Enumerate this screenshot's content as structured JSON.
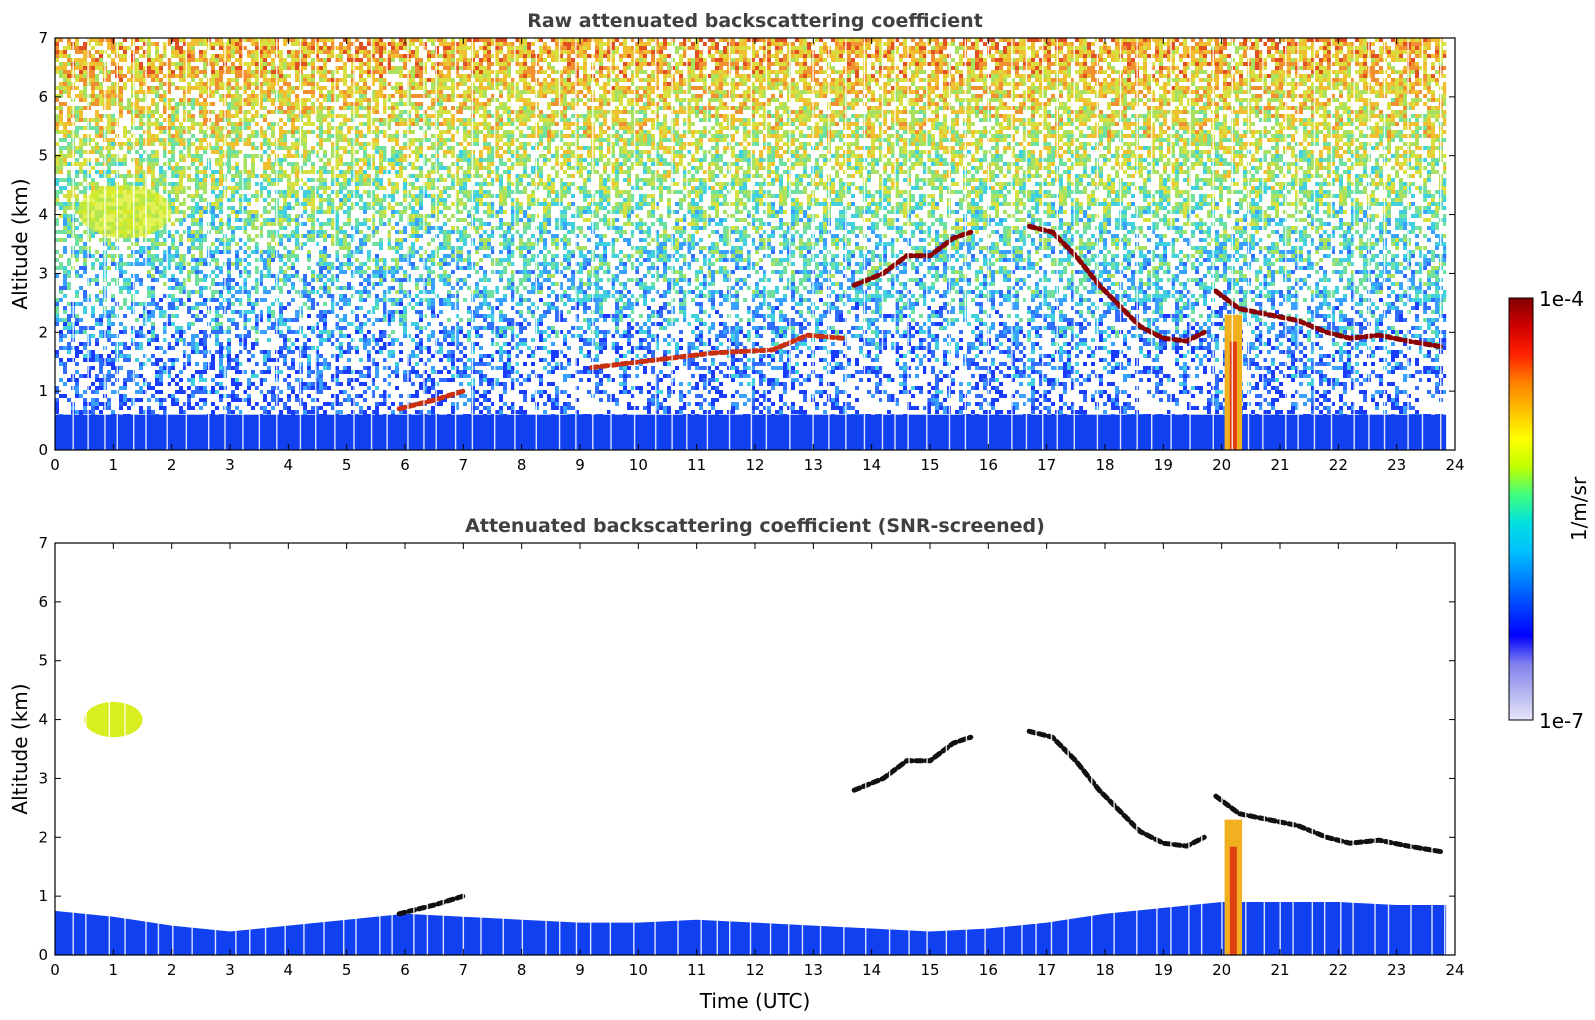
{
  "chart_data": [
    {
      "type": "heatmap",
      "title": "Raw attenuated backscattering coefficient",
      "xlabel": "",
      "ylabel": "Altitude (km)",
      "xlim": [
        0,
        24
      ],
      "ylim": [
        0,
        7
      ],
      "x_ticks": [
        0,
        1,
        2,
        3,
        4,
        5,
        6,
        7,
        8,
        9,
        10,
        11,
        12,
        13,
        14,
        15,
        16,
        17,
        18,
        19,
        20,
        21,
        22,
        23,
        24
      ],
      "y_ticks": [
        0,
        1,
        2,
        3,
        4,
        5,
        6,
        7
      ],
      "data_end_time": 23.85,
      "features": [
        {
          "kind": "boundary_layer",
          "time": [
            0,
            23.85
          ],
          "altitude": [
            0,
            0.6
          ],
          "level": "blue"
        },
        {
          "kind": "aerosol_patch",
          "time": [
            0.4,
            2.0
          ],
          "altitude": [
            3.6,
            4.5
          ],
          "level": "yellow-green"
        },
        {
          "kind": "cloud_layer",
          "points": [
            [
              5.9,
              0.7
            ],
            [
              6.5,
              0.85
            ],
            [
              7.0,
              1.0
            ]
          ],
          "level": "red"
        },
        {
          "kind": "cloud_layer",
          "points": [
            [
              9.2,
              1.4
            ],
            [
              11.3,
              1.65
            ],
            [
              12.3,
              1.7
            ],
            [
              12.9,
              1.95
            ],
            [
              13.5,
              1.9
            ]
          ],
          "level": "red"
        },
        {
          "kind": "cloud_layer",
          "points": [
            [
              13.7,
              2.8
            ],
            [
              14.2,
              3.0
            ],
            [
              14.6,
              3.3
            ],
            [
              15.0,
              3.3
            ],
            [
              15.4,
              3.6
            ],
            [
              15.7,
              3.7
            ]
          ],
          "level": "dark-red"
        },
        {
          "kind": "cloud_layer",
          "points": [
            [
              16.7,
              3.8
            ],
            [
              17.1,
              3.7
            ],
            [
              17.5,
              3.3
            ],
            [
              17.9,
              2.8
            ],
            [
              18.3,
              2.4
            ],
            [
              18.6,
              2.1
            ],
            [
              19.0,
              1.9
            ],
            [
              19.4,
              1.85
            ],
            [
              19.7,
              2.0
            ]
          ],
          "level": "dark-red"
        },
        {
          "kind": "cloud_layer",
          "points": [
            [
              19.9,
              2.7
            ],
            [
              20.3,
              2.4
            ],
            [
              20.8,
              2.3
            ],
            [
              21.3,
              2.2
            ],
            [
              21.8,
              2.0
            ],
            [
              22.2,
              1.9
            ],
            [
              22.7,
              1.95
            ],
            [
              23.2,
              1.85
            ],
            [
              23.8,
              1.75
            ]
          ],
          "level": "dark-red"
        },
        {
          "kind": "precipitation",
          "time": [
            20.05,
            20.35
          ],
          "altitude": [
            0,
            2.3
          ],
          "level": "yellow-red"
        }
      ]
    },
    {
      "type": "heatmap",
      "title": "Attenuated backscattering coefficient (SNR-screened)",
      "xlabel": "Time (UTC)",
      "ylabel": "Altitude (km)",
      "xlim": [
        0,
        24
      ],
      "ylim": [
        0,
        7
      ],
      "x_ticks": [
        0,
        1,
        2,
        3,
        4,
        5,
        6,
        7,
        8,
        9,
        10,
        11,
        12,
        13,
        14,
        15,
        16,
        17,
        18,
        19,
        20,
        21,
        22,
        23,
        24
      ],
      "y_ticks": [
        0,
        1,
        2,
        3,
        4,
        5,
        6,
        7
      ],
      "boundary_layer_top": [
        [
          0,
          0.75
        ],
        [
          1,
          0.65
        ],
        [
          2,
          0.5
        ],
        [
          3,
          0.4
        ],
        [
          4,
          0.5
        ],
        [
          5,
          0.6
        ],
        [
          6,
          0.7
        ],
        [
          7,
          0.65
        ],
        [
          8,
          0.6
        ],
        [
          9,
          0.55
        ],
        [
          10,
          0.55
        ],
        [
          11,
          0.6
        ],
        [
          12,
          0.55
        ],
        [
          13,
          0.5
        ],
        [
          14,
          0.45
        ],
        [
          15,
          0.4
        ],
        [
          16,
          0.45
        ],
        [
          17,
          0.55
        ],
        [
          18,
          0.7
        ],
        [
          19,
          0.8
        ],
        [
          20,
          0.9
        ],
        [
          21,
          0.9
        ],
        [
          22,
          0.9
        ],
        [
          23,
          0.85
        ],
        [
          23.85,
          0.85
        ]
      ],
      "features": [
        {
          "kind": "aerosol_patch",
          "time": [
            0.5,
            1.5
          ],
          "altitude": [
            3.7,
            4.3
          ],
          "level": "yellow-green"
        },
        {
          "kind": "cloud_layer",
          "points": [
            [
              5.9,
              0.7
            ],
            [
              6.5,
              0.85
            ],
            [
              7.0,
              1.0
            ]
          ],
          "level": "black"
        },
        {
          "kind": "cloud_layer",
          "points": [
            [
              13.7,
              2.8
            ],
            [
              14.2,
              3.0
            ],
            [
              14.6,
              3.3
            ],
            [
              15.0,
              3.3
            ],
            [
              15.4,
              3.6
            ],
            [
              15.7,
              3.7
            ]
          ],
          "level": "black"
        },
        {
          "kind": "cloud_layer",
          "points": [
            [
              16.7,
              3.8
            ],
            [
              17.1,
              3.7
            ],
            [
              17.5,
              3.3
            ],
            [
              17.9,
              2.8
            ],
            [
              18.3,
              2.4
            ],
            [
              18.6,
              2.1
            ],
            [
              19.0,
              1.9
            ],
            [
              19.4,
              1.85
            ],
            [
              19.7,
              2.0
            ]
          ],
          "level": "black"
        },
        {
          "kind": "cloud_layer",
          "points": [
            [
              19.9,
              2.7
            ],
            [
              20.3,
              2.4
            ],
            [
              20.8,
              2.3
            ],
            [
              21.3,
              2.2
            ],
            [
              21.8,
              2.0
            ],
            [
              22.2,
              1.9
            ],
            [
              22.7,
              1.95
            ],
            [
              23.2,
              1.85
            ],
            [
              23.8,
              1.75
            ]
          ],
          "level": "black"
        },
        {
          "kind": "precipitation",
          "time": [
            20.05,
            20.35
          ],
          "altitude": [
            0,
            2.3
          ],
          "level": "yellow-red"
        }
      ]
    }
  ],
  "colorbar": {
    "label": "1/m/sr",
    "max_label": "1e-4",
    "min_label": "1e-7",
    "scale": "log",
    "colors": [
      "#e6e6fa",
      "#b3b3f0",
      "#8080ee",
      "#0000ff",
      "#0040ff",
      "#0080ff",
      "#00c0ff",
      "#00e0e0",
      "#40ff80",
      "#c0ff00",
      "#ffff00",
      "#ffc000",
      "#ff8000",
      "#ff2000",
      "#d00000",
      "#800000"
    ]
  },
  "colors": {
    "bl": "#1040f0",
    "cloud": "#8b0000",
    "aerosol": "#d8ee20"
  }
}
